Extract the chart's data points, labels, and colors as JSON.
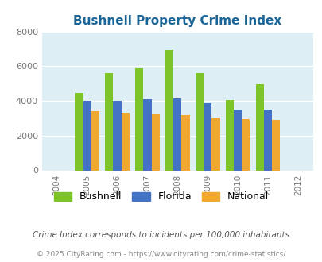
{
  "title": "Bushnell Property Crime Index",
  "years": [
    2004,
    2005,
    2006,
    2007,
    2008,
    2009,
    2010,
    2011,
    2012
  ],
  "bushnell": [
    0,
    4450,
    5600,
    5900,
    6950,
    5600,
    4050,
    4950,
    0
  ],
  "florida": [
    0,
    4000,
    3980,
    4100,
    4150,
    3880,
    3520,
    3480,
    0
  ],
  "national": [
    0,
    3430,
    3300,
    3230,
    3200,
    3030,
    2960,
    2900,
    0
  ],
  "bar_color_bushnell": "#7dc42a",
  "bar_color_florida": "#4472c4",
  "bar_color_national": "#f0a830",
  "bg_color": "#ddeef4",
  "ylim": [
    0,
    8000
  ],
  "yticks": [
    0,
    2000,
    4000,
    6000,
    8000
  ],
  "legend_labels": [
    "Bushnell",
    "Florida",
    "National"
  ],
  "note": "Crime Index corresponds to incidents per 100,000 inhabitants",
  "copyright": "© 2025 CityRating.com - https://www.cityrating.com/crime-statistics/",
  "title_color": "#1a6699",
  "note_color": "#555555",
  "copyright_color": "#888888"
}
